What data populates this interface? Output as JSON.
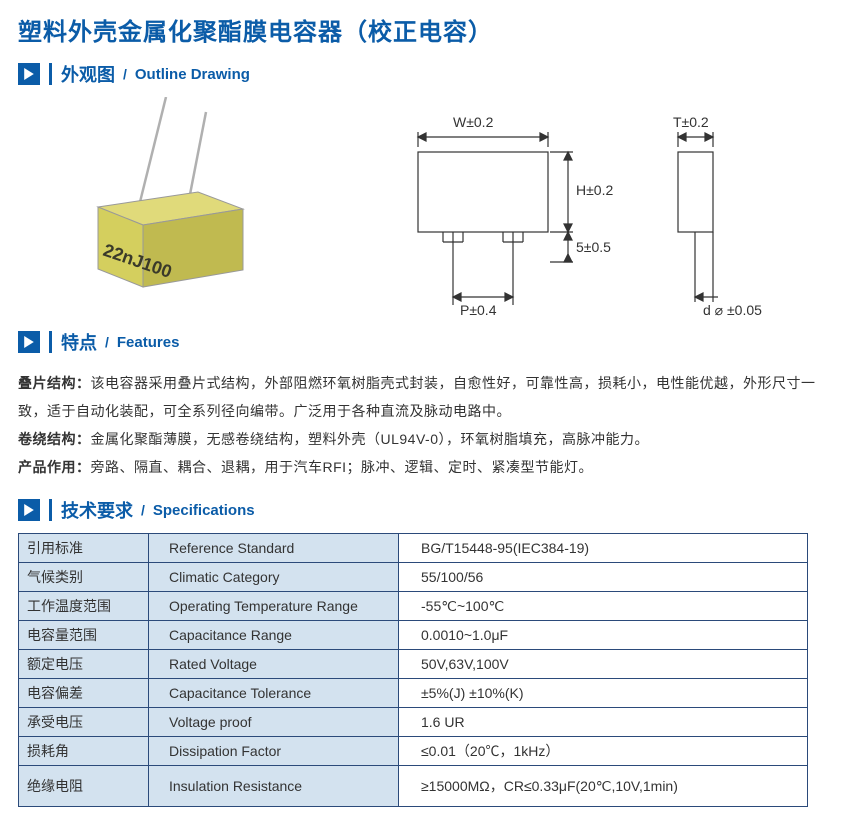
{
  "title": "塑料外壳金属化聚酯膜电容器（校正电容）",
  "sections": {
    "outline": {
      "cn": "外观图",
      "en": "Outline Drawing"
    },
    "features": {
      "cn": "特点",
      "en": "Features"
    },
    "specs": {
      "cn": "技术要求",
      "en": "Specifications"
    }
  },
  "icon_colors": {
    "bg": "#0b5ca8",
    "fg": "#ffffff"
  },
  "component": {
    "body_color": "#d4cf5e",
    "body_shadow": "#b8b24a",
    "lead_color": "#b0b0b0",
    "marking": "22nJ100",
    "marking_color": "#3a3a2a"
  },
  "dim_drawing": {
    "labels": {
      "W": "W±0.2",
      "T": "T±0.2",
      "H": "H±0.2",
      "five": "5±0.5",
      "P": "P±0.4",
      "d": "d ⌀ ±0.05"
    },
    "line_color": "#333333",
    "fill_color": "#f5f5f5"
  },
  "features": {
    "p1_label": "叠片结构：",
    "p1_text": "该电容器采用叠片式结构，外部阻燃环氧树脂壳式封装，自愈性好，可靠性高，损耗小，电性能优越，外形尺寸一致，适于自动化装配，可全系列径向编带。广泛用于各种直流及脉动电路中。",
    "p2_label": "卷绕结构：",
    "p2_text": "金属化聚酯薄膜，无感卷绕结构，塑料外壳（UL94V-0），环氧树脂填充，高脉冲能力。",
    "p3_label": "产品作用：",
    "p3_text": "旁路、隔直、耦合、退耦，用于汽车RFI；脉冲、逻辑、定时、紧凑型节能灯。"
  },
  "spec_rows": [
    {
      "cn": "引用标准",
      "en": "Reference Standard",
      "val": "BG/T15448-95(IEC384-19)"
    },
    {
      "cn": "气候类别",
      "en": "Climatic Category",
      "val": "55/100/56"
    },
    {
      "cn": "工作温度范围",
      "en": "Operating Temperature Range",
      "val": "-55℃~100℃"
    },
    {
      "cn": "电容量范围",
      "en": "Capacitance Range",
      "val": "0.0010~1.0μF"
    },
    {
      "cn": "额定电压",
      "en": "Rated Voltage",
      "val": "50V,63V,100V"
    },
    {
      "cn": "电容偏差",
      "en": "Capacitance Tolerance",
      "val": "±5%(J) ±10%(K)"
    },
    {
      "cn": "承受电压",
      "en": "Voltage proof",
      "val": "1.6 UR"
    },
    {
      "cn": "损耗角",
      "en": "Dissipation Factor",
      "val": "≤0.01（20℃，1kHz）"
    },
    {
      "cn": "绝缘电阻",
      "en": "Insulation Resistance",
      "val": "≥15000MΩ，CR≤0.33μF(20℃,10V,1min)"
    }
  ],
  "table_colors": {
    "header_bg": "#d3e2ef",
    "border": "#2b4a7a",
    "body_bg": "#ffffff"
  }
}
